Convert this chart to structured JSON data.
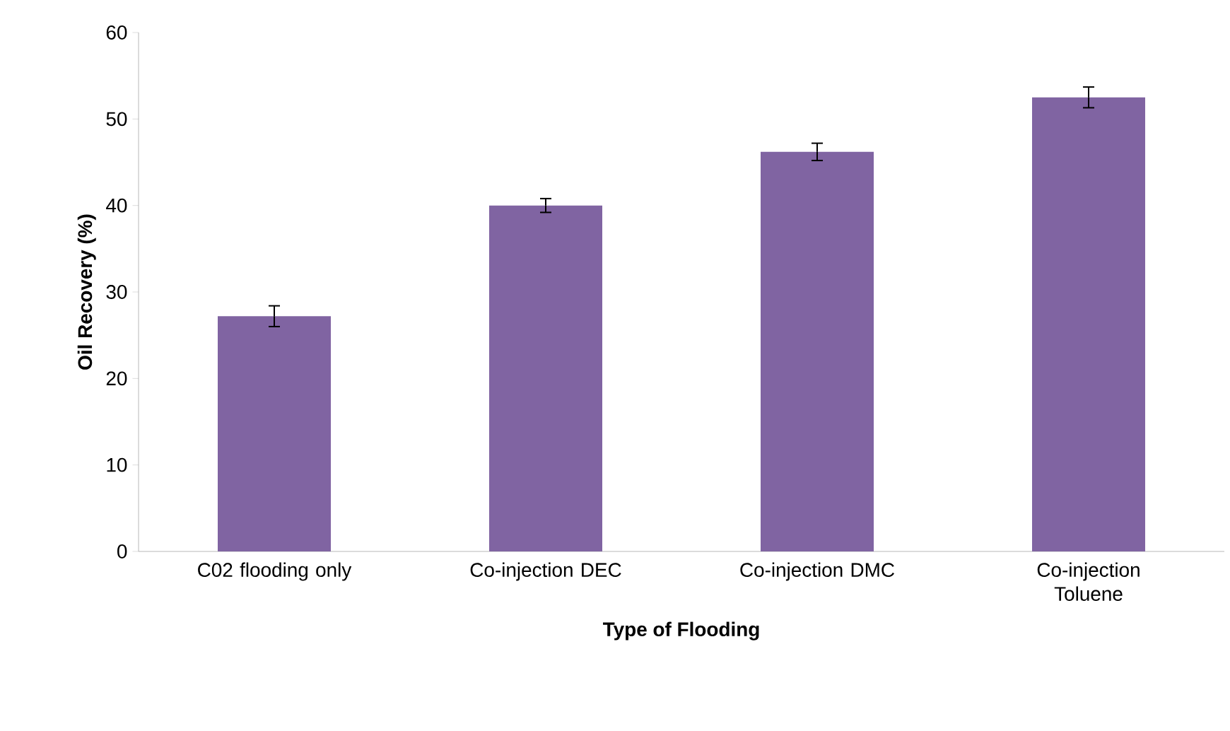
{
  "chart_data": {
    "type": "bar",
    "xlabel": "Type of Flooding",
    "ylabel": "Oil Recovery (%)",
    "categories": [
      "C02 flooding only",
      "Co-injection DEC",
      "Co-injection DMC",
      "Co-injection Toluene"
    ],
    "values": [
      27.2,
      40.0,
      46.2,
      52.5
    ],
    "errors": [
      1.2,
      0.8,
      1.0,
      1.2
    ],
    "color": "#8064a2",
    "ylim": [
      0,
      60
    ],
    "yticks": [
      0,
      10,
      20,
      30,
      40,
      50,
      60
    ],
    "grid": false
  }
}
